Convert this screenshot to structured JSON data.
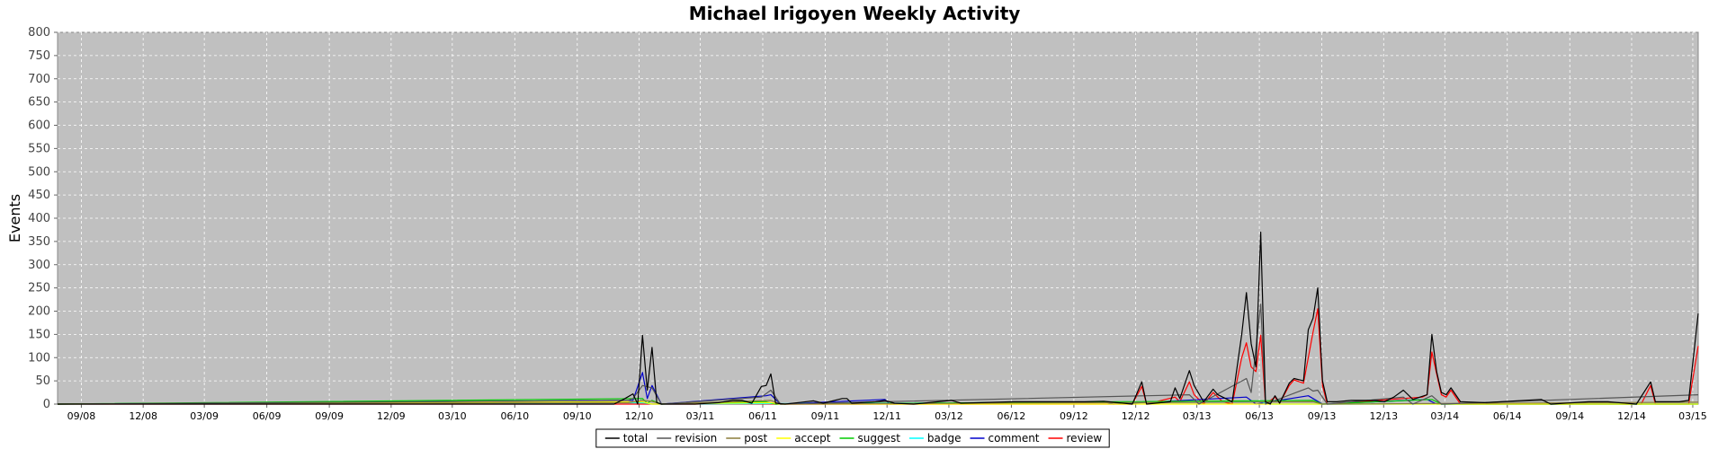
{
  "chart_data": {
    "type": "line",
    "title": "Michael Irigoyen Weekly Activity",
    "xlabel": "",
    "ylabel": "Events",
    "ylim": [
      0,
      800
    ],
    "y_ticks": [
      0,
      50,
      100,
      150,
      200,
      250,
      300,
      350,
      400,
      450,
      500,
      550,
      600,
      650,
      700,
      750,
      800
    ],
    "x_range": [
      "2008-07-28",
      "2015-03-09"
    ],
    "x_ticks": [
      {
        "date": "2008-09-01",
        "label": "09/08"
      },
      {
        "date": "2008-12-01",
        "label": "12/08"
      },
      {
        "date": "2009-03-01",
        "label": "03/09"
      },
      {
        "date": "2009-06-01",
        "label": "06/09"
      },
      {
        "date": "2009-09-01",
        "label": "09/09"
      },
      {
        "date": "2009-12-01",
        "label": "12/09"
      },
      {
        "date": "2010-03-01",
        "label": "03/10"
      },
      {
        "date": "2010-06-01",
        "label": "06/10"
      },
      {
        "date": "2010-09-01",
        "label": "09/10"
      },
      {
        "date": "2010-12-01",
        "label": "12/10"
      },
      {
        "date": "2011-03-01",
        "label": "03/11"
      },
      {
        "date": "2011-06-01",
        "label": "06/11"
      },
      {
        "date": "2011-09-01",
        "label": "09/11"
      },
      {
        "date": "2011-12-01",
        "label": "12/11"
      },
      {
        "date": "2012-03-01",
        "label": "03/12"
      },
      {
        "date": "2012-06-01",
        "label": "06/12"
      },
      {
        "date": "2012-09-01",
        "label": "09/12"
      },
      {
        "date": "2012-12-01",
        "label": "12/12"
      },
      {
        "date": "2013-03-01",
        "label": "03/13"
      },
      {
        "date": "2013-06-01",
        "label": "06/13"
      },
      {
        "date": "2013-09-01",
        "label": "09/13"
      },
      {
        "date": "2013-12-01",
        "label": "12/13"
      },
      {
        "date": "2014-03-01",
        "label": "03/14"
      },
      {
        "date": "2014-06-01",
        "label": "06/14"
      },
      {
        "date": "2014-09-01",
        "label": "09/14"
      },
      {
        "date": "2014-12-01",
        "label": "12/14"
      },
      {
        "date": "2015-03-01",
        "label": "03/15"
      }
    ],
    "grid": true,
    "legend_position": "bottom-center",
    "plot_background": "#c0c0c0",
    "series": [
      {
        "name": "total",
        "color": "#000000",
        "points": [
          [
            "2008-07-28",
            0
          ],
          [
            "2010-10-25",
            0
          ],
          [
            "2010-11-08",
            10
          ],
          [
            "2010-11-22",
            22
          ],
          [
            "2010-11-29",
            0
          ],
          [
            "2010-12-06",
            148
          ],
          [
            "2010-12-13",
            30
          ],
          [
            "2010-12-20",
            122
          ],
          [
            "2010-12-27",
            3
          ],
          [
            "2011-01-03",
            0
          ],
          [
            "2011-02-21",
            0
          ],
          [
            "2011-03-28",
            3
          ],
          [
            "2011-04-18",
            8
          ],
          [
            "2011-05-02",
            8
          ],
          [
            "2011-05-16",
            2
          ],
          [
            "2011-05-30",
            38
          ],
          [
            "2011-06-06",
            40
          ],
          [
            "2011-06-13",
            65
          ],
          [
            "2011-06-20",
            2
          ],
          [
            "2011-07-04",
            0
          ],
          [
            "2011-08-15",
            7
          ],
          [
            "2011-08-29",
            2
          ],
          [
            "2011-09-26",
            12
          ],
          [
            "2011-10-03",
            12
          ],
          [
            "2011-10-10",
            2
          ],
          [
            "2011-11-14",
            5
          ],
          [
            "2011-11-28",
            8
          ],
          [
            "2011-12-12",
            2
          ],
          [
            "2012-01-09",
            0
          ],
          [
            "2012-03-05",
            8
          ],
          [
            "2012-03-19",
            2
          ],
          [
            "2012-06-04",
            5
          ],
          [
            "2012-09-17",
            5
          ],
          [
            "2012-10-15",
            6
          ],
          [
            "2012-11-26",
            0
          ],
          [
            "2012-12-10",
            48
          ],
          [
            "2012-12-17",
            0
          ],
          [
            "2013-01-21",
            5
          ],
          [
            "2013-01-28",
            35
          ],
          [
            "2013-02-04",
            12
          ],
          [
            "2013-02-18",
            72
          ],
          [
            "2013-02-25",
            40
          ],
          [
            "2013-03-11",
            5
          ],
          [
            "2013-03-25",
            32
          ],
          [
            "2013-04-01",
            20
          ],
          [
            "2013-04-22",
            5
          ],
          [
            "2013-05-06",
            150
          ],
          [
            "2013-05-13",
            240
          ],
          [
            "2013-05-20",
            130
          ],
          [
            "2013-05-27",
            80
          ],
          [
            "2013-06-03",
            370
          ],
          [
            "2013-06-10",
            5
          ],
          [
            "2013-06-17",
            0
          ],
          [
            "2013-06-24",
            18
          ],
          [
            "2013-07-01",
            2
          ],
          [
            "2013-07-15",
            45
          ],
          [
            "2013-07-22",
            55
          ],
          [
            "2013-08-05",
            50
          ],
          [
            "2013-08-12",
            160
          ],
          [
            "2013-08-19",
            185
          ],
          [
            "2013-08-26",
            250
          ],
          [
            "2013-09-02",
            50
          ],
          [
            "2013-09-09",
            5
          ],
          [
            "2013-09-23",
            5
          ],
          [
            "2013-10-14",
            8
          ],
          [
            "2013-11-18",
            8
          ],
          [
            "2013-12-02",
            5
          ],
          [
            "2013-12-16",
            15
          ],
          [
            "2013-12-30",
            30
          ],
          [
            "2014-01-13",
            10
          ],
          [
            "2014-02-03",
            20
          ],
          [
            "2014-02-10",
            150
          ],
          [
            "2014-02-17",
            70
          ],
          [
            "2014-02-24",
            25
          ],
          [
            "2014-03-03",
            20
          ],
          [
            "2014-03-10",
            35
          ],
          [
            "2014-03-24",
            5
          ],
          [
            "2014-04-28",
            3
          ],
          [
            "2014-07-21",
            10
          ],
          [
            "2014-08-04",
            0
          ],
          [
            "2014-09-29",
            5
          ],
          [
            "2014-10-27",
            5
          ],
          [
            "2014-12-08",
            0
          ],
          [
            "2014-12-29",
            48
          ],
          [
            "2015-01-05",
            5
          ],
          [
            "2015-02-09",
            5
          ],
          [
            "2015-02-23",
            8
          ],
          [
            "2015-03-09",
            195
          ]
        ]
      },
      {
        "name": "revision",
        "color": "#555555",
        "points": [
          [
            "2008-07-28",
            0
          ],
          [
            "2010-11-15",
            8
          ],
          [
            "2010-11-22",
            12
          ],
          [
            "2010-12-06",
            40
          ],
          [
            "2010-12-20",
            35
          ],
          [
            "2011-01-03",
            0
          ],
          [
            "2011-05-30",
            15
          ],
          [
            "2011-06-13",
            30
          ],
          [
            "2011-06-27",
            0
          ],
          [
            "2013-02-18",
            20
          ],
          [
            "2013-03-04",
            0
          ],
          [
            "2013-05-13",
            55
          ],
          [
            "2013-05-20",
            25
          ],
          [
            "2013-06-03",
            215
          ],
          [
            "2013-06-10",
            0
          ],
          [
            "2013-08-12",
            35
          ],
          [
            "2013-08-19",
            28
          ],
          [
            "2013-08-26",
            30
          ],
          [
            "2013-09-09",
            0
          ],
          [
            "2013-12-30",
            15
          ],
          [
            "2014-01-13",
            0
          ],
          [
            "2014-02-10",
            18
          ],
          [
            "2014-02-24",
            0
          ],
          [
            "2015-03-09",
            20
          ]
        ]
      },
      {
        "name": "post",
        "color": "#8b7d3a",
        "points": [
          [
            "2008-07-28",
            0
          ],
          [
            "2010-11-15",
            3
          ],
          [
            "2010-12-06",
            8
          ],
          [
            "2010-12-20",
            6
          ],
          [
            "2011-01-03",
            0
          ],
          [
            "2011-06-13",
            8
          ],
          [
            "2011-06-27",
            0
          ],
          [
            "2013-08-19",
            5
          ],
          [
            "2013-09-02",
            0
          ],
          [
            "2015-03-09",
            4
          ]
        ]
      },
      {
        "name": "accept",
        "color": "#ffff00",
        "points": [
          [
            "2008-07-28",
            0
          ],
          [
            "2010-12-06",
            5
          ],
          [
            "2010-12-20",
            0
          ],
          [
            "2011-06-13",
            3
          ],
          [
            "2011-06-27",
            0
          ],
          [
            "2015-03-09",
            0
          ]
        ]
      },
      {
        "name": "suggest",
        "color": "#00cc00",
        "points": [
          [
            "2008-07-28",
            0
          ],
          [
            "2010-12-06",
            12
          ],
          [
            "2010-12-13",
            2
          ],
          [
            "2010-12-20",
            8
          ],
          [
            "2011-01-03",
            0
          ],
          [
            "2011-06-06",
            5
          ],
          [
            "2011-06-20",
            0
          ],
          [
            "2013-08-19",
            8
          ],
          [
            "2013-09-02",
            0
          ],
          [
            "2014-02-10",
            10
          ],
          [
            "2014-02-24",
            0
          ],
          [
            "2015-03-09",
            0
          ]
        ]
      },
      {
        "name": "badge",
        "color": "#00ffff",
        "points": [
          [
            "2008-07-28",
            0
          ],
          [
            "2010-12-06",
            3
          ],
          [
            "2010-12-20",
            0
          ],
          [
            "2013-06-03",
            5
          ],
          [
            "2013-06-17",
            0
          ],
          [
            "2015-03-09",
            0
          ]
        ]
      },
      {
        "name": "comment",
        "color": "#0000cc",
        "points": [
          [
            "2008-07-28",
            0
          ],
          [
            "2010-11-22",
            8
          ],
          [
            "2010-12-06",
            68
          ],
          [
            "2010-12-13",
            12
          ],
          [
            "2010-12-20",
            40
          ],
          [
            "2011-01-03",
            0
          ],
          [
            "2011-06-06",
            18
          ],
          [
            "2011-06-13",
            20
          ],
          [
            "2011-06-27",
            0
          ],
          [
            "2011-11-28",
            10
          ],
          [
            "2011-12-05",
            0
          ],
          [
            "2012-10-15",
            5
          ],
          [
            "2012-10-29",
            0
          ],
          [
            "2013-05-13",
            15
          ],
          [
            "2013-05-27",
            0
          ],
          [
            "2013-08-12",
            18
          ],
          [
            "2013-08-19",
            12
          ],
          [
            "2013-09-02",
            0
          ],
          [
            "2014-02-03",
            10
          ],
          [
            "2014-02-17",
            0
          ],
          [
            "2015-03-09",
            0
          ]
        ]
      },
      {
        "name": "review",
        "color": "#ff0000",
        "points": [
          [
            "2008-07-28",
            0
          ],
          [
            "2012-11-26",
            0
          ],
          [
            "2012-12-10",
            38
          ],
          [
            "2012-12-17",
            0
          ],
          [
            "2013-01-28",
            15
          ],
          [
            "2013-02-04",
            5
          ],
          [
            "2013-02-18",
            48
          ],
          [
            "2013-02-25",
            20
          ],
          [
            "2013-03-11",
            0
          ],
          [
            "2013-03-25",
            25
          ],
          [
            "2013-04-08",
            5
          ],
          [
            "2013-04-22",
            0
          ],
          [
            "2013-05-06",
            100
          ],
          [
            "2013-05-13",
            132
          ],
          [
            "2013-05-20",
            80
          ],
          [
            "2013-05-27",
            70
          ],
          [
            "2013-06-03",
            148
          ],
          [
            "2013-06-10",
            0
          ],
          [
            "2013-06-24",
            15
          ],
          [
            "2013-07-01",
            2
          ],
          [
            "2013-07-15",
            40
          ],
          [
            "2013-07-22",
            52
          ],
          [
            "2013-08-05",
            45
          ],
          [
            "2013-08-12",
            100
          ],
          [
            "2013-08-19",
            155
          ],
          [
            "2013-08-26",
            205
          ],
          [
            "2013-09-02",
            40
          ],
          [
            "2013-09-09",
            0
          ],
          [
            "2014-01-27",
            15
          ],
          [
            "2014-02-03",
            20
          ],
          [
            "2014-02-10",
            112
          ],
          [
            "2014-02-17",
            65
          ],
          [
            "2014-02-24",
            20
          ],
          [
            "2014-03-03",
            15
          ],
          [
            "2014-03-10",
            30
          ],
          [
            "2014-03-24",
            0
          ],
          [
            "2014-12-15",
            0
          ],
          [
            "2014-12-29",
            40
          ],
          [
            "2015-01-05",
            0
          ],
          [
            "2015-02-23",
            0
          ],
          [
            "2015-03-09",
            125
          ]
        ]
      }
    ]
  }
}
